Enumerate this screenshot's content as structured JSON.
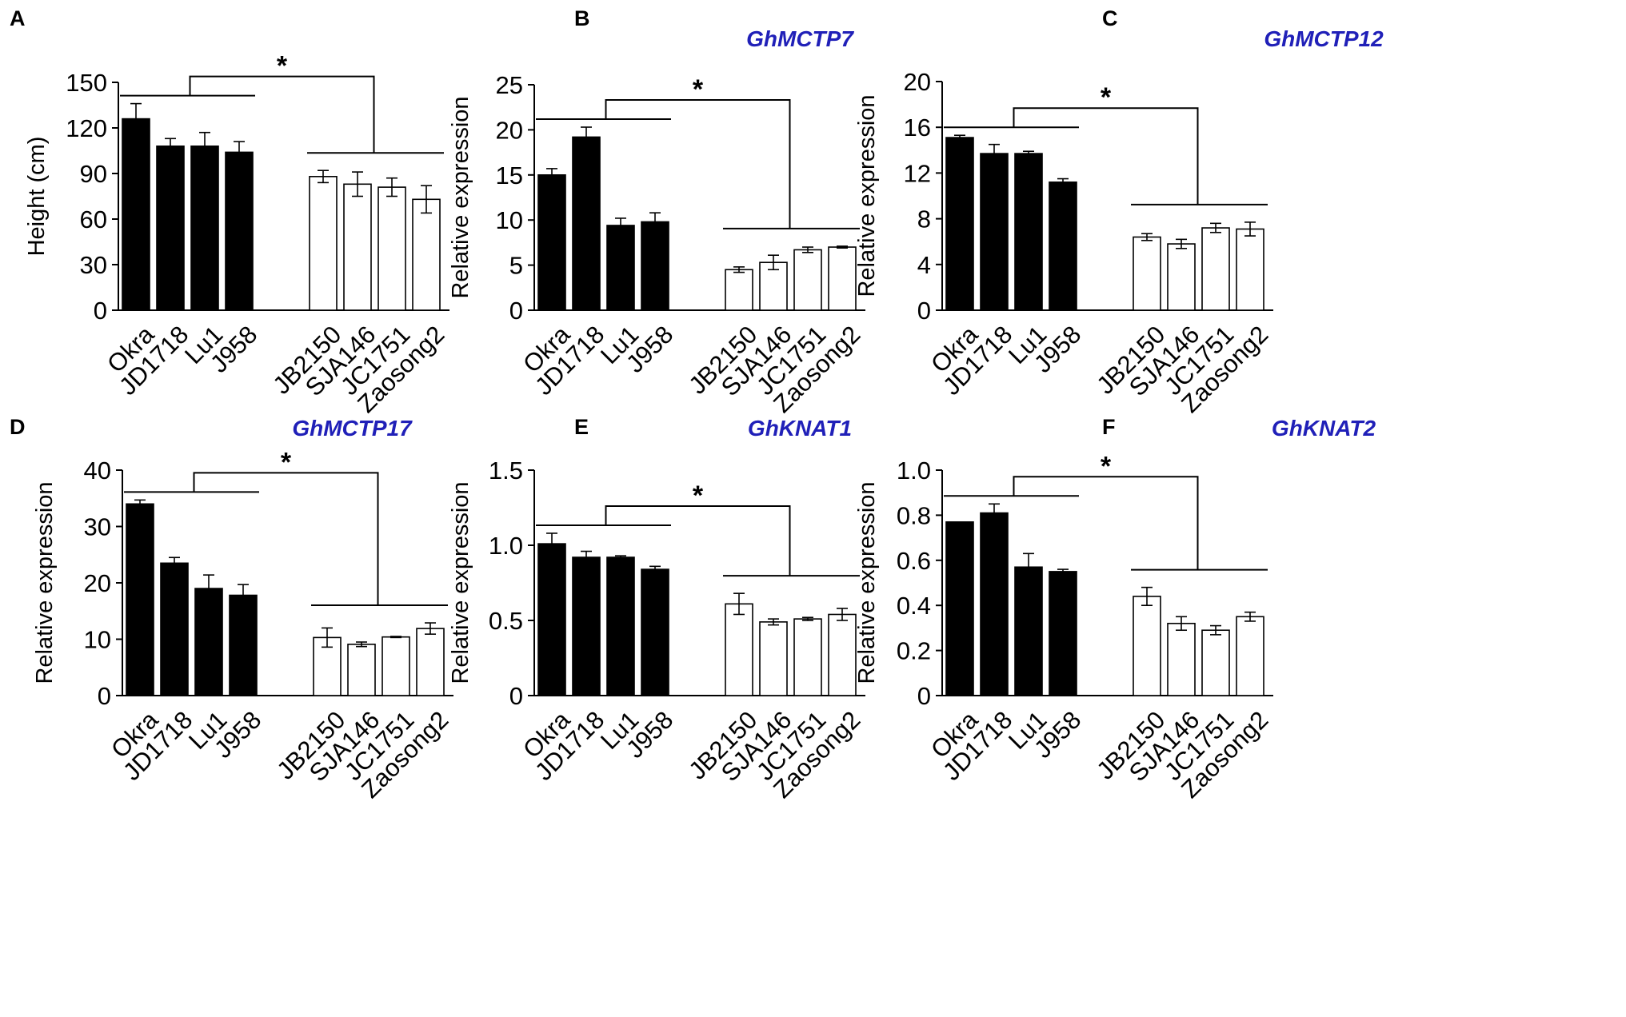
{
  "figure": {
    "colors": {
      "black_bar": "#000000",
      "white_bar": "#ffffff",
      "title": "#2020b8"
    }
  },
  "chart_data": [
    {
      "panel": "A",
      "type": "bar",
      "title": "",
      "ylabel": "Height (cm)",
      "xlabel": "",
      "ylim": [
        0,
        150
      ],
      "yticks": [
        "0",
        "30",
        "60",
        "90",
        "120",
        "150"
      ],
      "categories": [
        "Okra",
        "JD1718",
        "Lu1",
        "J958",
        "JB2150",
        "SJA146",
        "JC1751",
        "Zaosong2"
      ],
      "values": [
        126,
        108,
        108,
        104,
        88,
        83,
        81,
        73
      ],
      "errors": [
        10,
        5,
        9,
        7,
        4,
        8,
        6,
        9
      ],
      "significance": "*"
    },
    {
      "panel": "B",
      "type": "bar",
      "title": "GhMCTP7",
      "ylabel": "Relative expression",
      "xlabel": "",
      "ylim": [
        0,
        25
      ],
      "yticks": [
        "0",
        "5",
        "10",
        "15",
        "20",
        "25"
      ],
      "categories": [
        "Okra",
        "JD1718",
        "Lu1",
        "J958",
        "JB2150",
        "SJA146",
        "JC1751",
        "Zaosong2"
      ],
      "values": [
        15.0,
        19.2,
        9.4,
        9.8,
        4.5,
        5.3,
        6.7,
        7.0
      ],
      "errors": [
        0.7,
        1.1,
        0.8,
        1.0,
        0.3,
        0.8,
        0.3,
        0.1
      ],
      "significance": "*"
    },
    {
      "panel": "C",
      "type": "bar",
      "title": "GhMCTP12",
      "ylabel": "Relative expression",
      "xlabel": "",
      "ylim": [
        0,
        20
      ],
      "yticks": [
        "0",
        "4",
        "8",
        "12",
        "16",
        "20"
      ],
      "categories": [
        "Okra",
        "JD1718",
        "Lu1",
        "J958",
        "JB2150",
        "SJA146",
        "JC1751",
        "Zaosong2"
      ],
      "values": [
        15.1,
        13.7,
        13.7,
        11.2,
        6.4,
        5.8,
        7.2,
        7.1
      ],
      "errors": [
        0.2,
        0.8,
        0.2,
        0.3,
        0.3,
        0.4,
        0.4,
        0.6
      ],
      "significance": "*"
    },
    {
      "panel": "D",
      "type": "bar",
      "title": "GhMCTP17",
      "ylabel": "Relative expression",
      "xlabel": "",
      "ylim": [
        0,
        40
      ],
      "yticks": [
        "0",
        "10",
        "20",
        "30",
        "40"
      ],
      "categories": [
        "Okra",
        "JD1718",
        "Lu1",
        "J958",
        "JB2150",
        "SJA146",
        "JC1751",
        "Zaosong2"
      ],
      "values": [
        34.0,
        23.5,
        19.0,
        17.8,
        10.3,
        9.1,
        10.4,
        11.9
      ],
      "errors": [
        0.7,
        1.0,
        2.4,
        1.9,
        1.7,
        0.4,
        0.1,
        1.0
      ],
      "significance": "*"
    },
    {
      "panel": "E",
      "type": "bar",
      "title": "GhKNAT1",
      "ylabel": "Relative expression",
      "xlabel": "",
      "ylim": [
        0,
        1.5
      ],
      "yticks": [
        "0",
        "0.5",
        "1.0",
        "1.5"
      ],
      "categories": [
        "Okra",
        "JD1718",
        "Lu1",
        "J958",
        "JB2150",
        "SJA146",
        "JC1751",
        "Zaosong2"
      ],
      "values": [
        1.01,
        0.92,
        0.92,
        0.84,
        0.61,
        0.49,
        0.51,
        0.54
      ],
      "errors": [
        0.07,
        0.04,
        0.01,
        0.02,
        0.07,
        0.02,
        0.01,
        0.04
      ],
      "significance": "*"
    },
    {
      "panel": "F",
      "type": "bar",
      "title": "GhKNAT2",
      "ylabel": "Relative expression",
      "xlabel": "",
      "ylim": [
        0,
        1.0
      ],
      "yticks": [
        "0",
        "0.2",
        "0.4",
        "0.6",
        "0.8",
        "1.0"
      ],
      "categories": [
        "Okra",
        "JD1718",
        "Lu1",
        "J958",
        "JB2150",
        "SJA146",
        "JC1751",
        "Zaosong2"
      ],
      "values": [
        0.77,
        0.81,
        0.57,
        0.55,
        0.44,
        0.32,
        0.29,
        0.35
      ],
      "errors": [
        0.0,
        0.04,
        0.06,
        0.01,
        0.04,
        0.03,
        0.02,
        0.02
      ],
      "significance": "*"
    }
  ]
}
